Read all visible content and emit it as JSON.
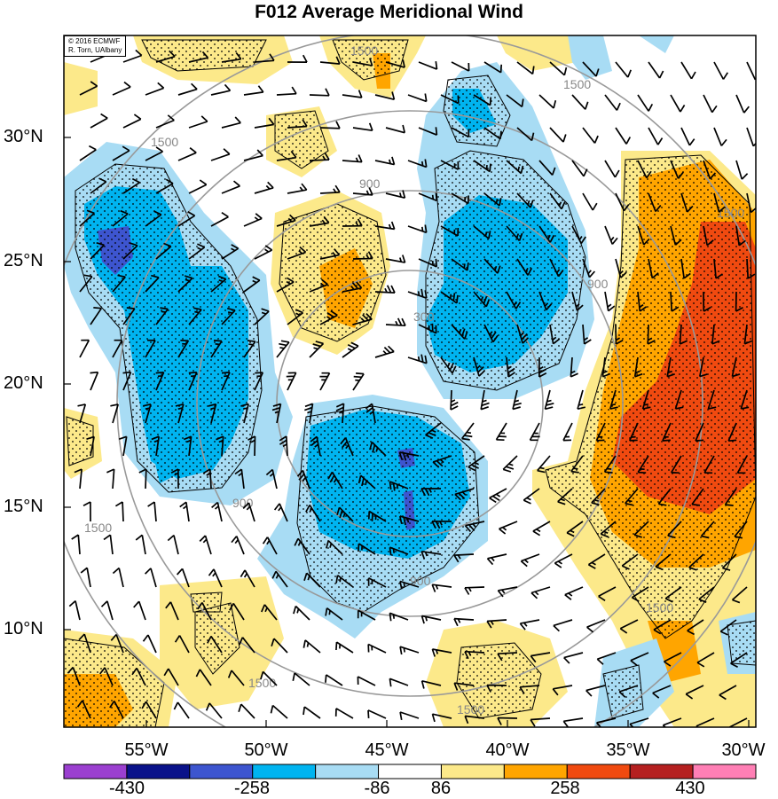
{
  "title": "F012 Average Meridional Wind",
  "credit": [
    "© 2016 ECMWF",
    "R. Torn, UAlbany"
  ],
  "lat_labels": [
    "30°N",
    "25°N",
    "20°N",
    "15°N",
    "10°N"
  ],
  "lon_labels": [
    "55°W",
    "50°W",
    "45°W",
    "40°W",
    "35°W",
    "30°W"
  ],
  "contour_labels": [
    "300",
    "900",
    "1500"
  ],
  "colorbar": {
    "labels": [
      "-430",
      "-258",
      "-86",
      "86",
      "258",
      "430"
    ],
    "colors": [
      "#9b3fd0",
      "#0a128a",
      "#3d55cf",
      "#00b4f0",
      "#a8dcf4",
      "#ffffff",
      "#fce98a",
      "#ffa500",
      "#f04a10",
      "#b52020",
      "#ff7fb5"
    ]
  },
  "fill_colors": {
    "light_blue": "#a8dcf4",
    "blue": "#00b4f0",
    "dark_blue": "#3d55cf",
    "yellow": "#fce98a",
    "orange": "#ffa500",
    "red_orange": "#f04a10",
    "gray_contour": "#999999"
  },
  "icons": [
    "wind-barb-icon",
    "stipple-pattern"
  ]
}
